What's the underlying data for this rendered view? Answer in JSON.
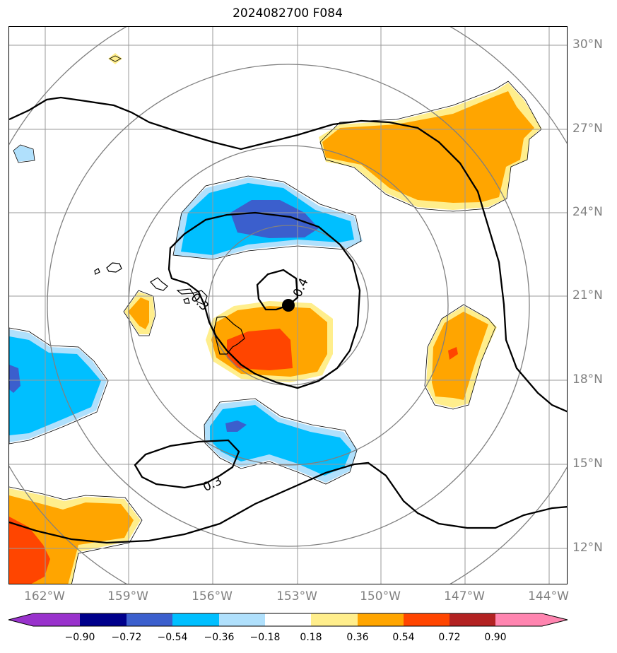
{
  "title": "2024082700 F084",
  "lat_labels": [
    "30°N",
    "27°N",
    "24°N",
    "21°N",
    "18°N",
    "15°N",
    "12°N"
  ],
  "lon_labels": [
    "162°W",
    "159°W",
    "156°W",
    "153°W",
    "150°W",
    "147°W",
    "144°W"
  ],
  "contour_labels": [
    "0.3",
    "0.4",
    "0.3"
  ],
  "colorbar": {
    "ticks": [
      "−0.90",
      "−0.72",
      "−0.54",
      "−0.36",
      "−0.18",
      "0.18",
      "0.36",
      "0.54",
      "0.72",
      "0.90"
    ],
    "colors": [
      "#9932cc",
      "#00008b",
      "#3b5fcd",
      "#00bfff",
      "#b0e0fc",
      "#ffffff",
      "#ffee8c",
      "#ffa500",
      "#ff4500",
      "#b22222",
      "#ff85b0"
    ]
  },
  "colors": {
    "pale_yellow": "#ffee8c",
    "orange": "#ffa500",
    "red_orange": "#ff4500",
    "light_blue": "#b0e0fc",
    "sky_blue": "#00bfff",
    "royal_blue": "#3b5fcd",
    "range_ring": "#808080",
    "grid": "#9a9a9a"
  },
  "storm_center": {
    "lon": "153.2°W",
    "lat": "20.6°N"
  }
}
